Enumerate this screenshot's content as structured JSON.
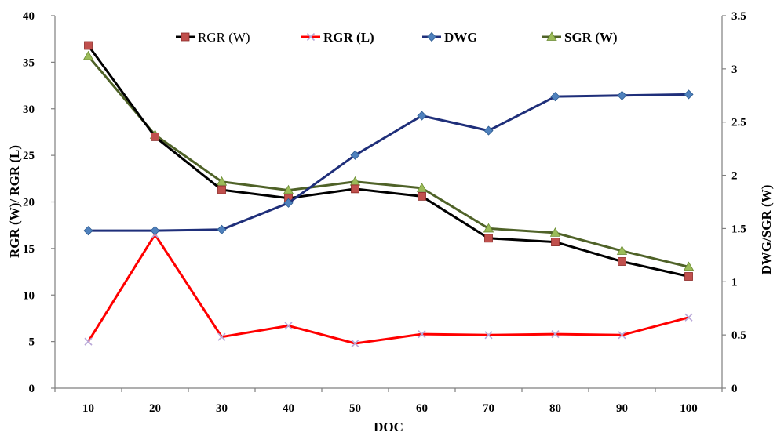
{
  "chart_data": {
    "type": "line",
    "title": "",
    "xlabel": "DOC",
    "ylabel_left": "RGR (W)/ RGR (L)",
    "ylabel_right": "DWG/SGR (W)",
    "x": [
      10,
      20,
      30,
      40,
      50,
      60,
      70,
      80,
      90,
      100
    ],
    "x_tick_labels": [
      "10",
      "20",
      "30",
      "40",
      "50",
      "60",
      "70",
      "80",
      "90",
      "100"
    ],
    "ylim_left": [
      0,
      40
    ],
    "y_ticks_left": [
      "0",
      "5",
      "10",
      "15",
      "20",
      "25",
      "30",
      "35",
      "40"
    ],
    "ylim_right": [
      0,
      3.5
    ],
    "y_ticks_right": [
      "0",
      "0.5",
      "1",
      "1.5",
      "2",
      "2.5",
      "3",
      "3.5"
    ],
    "legend_position": "top",
    "grid": false,
    "series": [
      {
        "name": "RGR (W)",
        "axis": "left",
        "marker": "square",
        "line_color": "#000000",
        "marker_color": "#c0504d",
        "values": [
          36.8,
          27.0,
          21.3,
          20.4,
          21.4,
          20.6,
          16.1,
          15.7,
          13.6,
          12.0
        ]
      },
      {
        "name": "RGR (L)",
        "axis": "left",
        "marker": "x",
        "line_color": "#ff0000",
        "marker_color": "#b9a8d8",
        "values": [
          5.0,
          16.5,
          5.5,
          6.7,
          4.8,
          5.8,
          5.7,
          5.8,
          5.7,
          7.6
        ]
      },
      {
        "name": "DWG",
        "axis": "right",
        "marker": "diamond",
        "line_color": "#1f2f7a",
        "marker_color": "#4f81bd",
        "values": [
          1.48,
          1.48,
          1.49,
          1.74,
          2.19,
          2.56,
          2.42,
          2.74,
          2.75,
          2.76
        ]
      },
      {
        "name": "SGR (W)",
        "axis": "right",
        "marker": "triangle",
        "line_color": "#4f6228",
        "marker_color": "#9bbb59",
        "values": [
          3.12,
          2.38,
          1.94,
          1.86,
          1.94,
          1.88,
          1.5,
          1.46,
          1.29,
          1.14
        ]
      }
    ]
  }
}
